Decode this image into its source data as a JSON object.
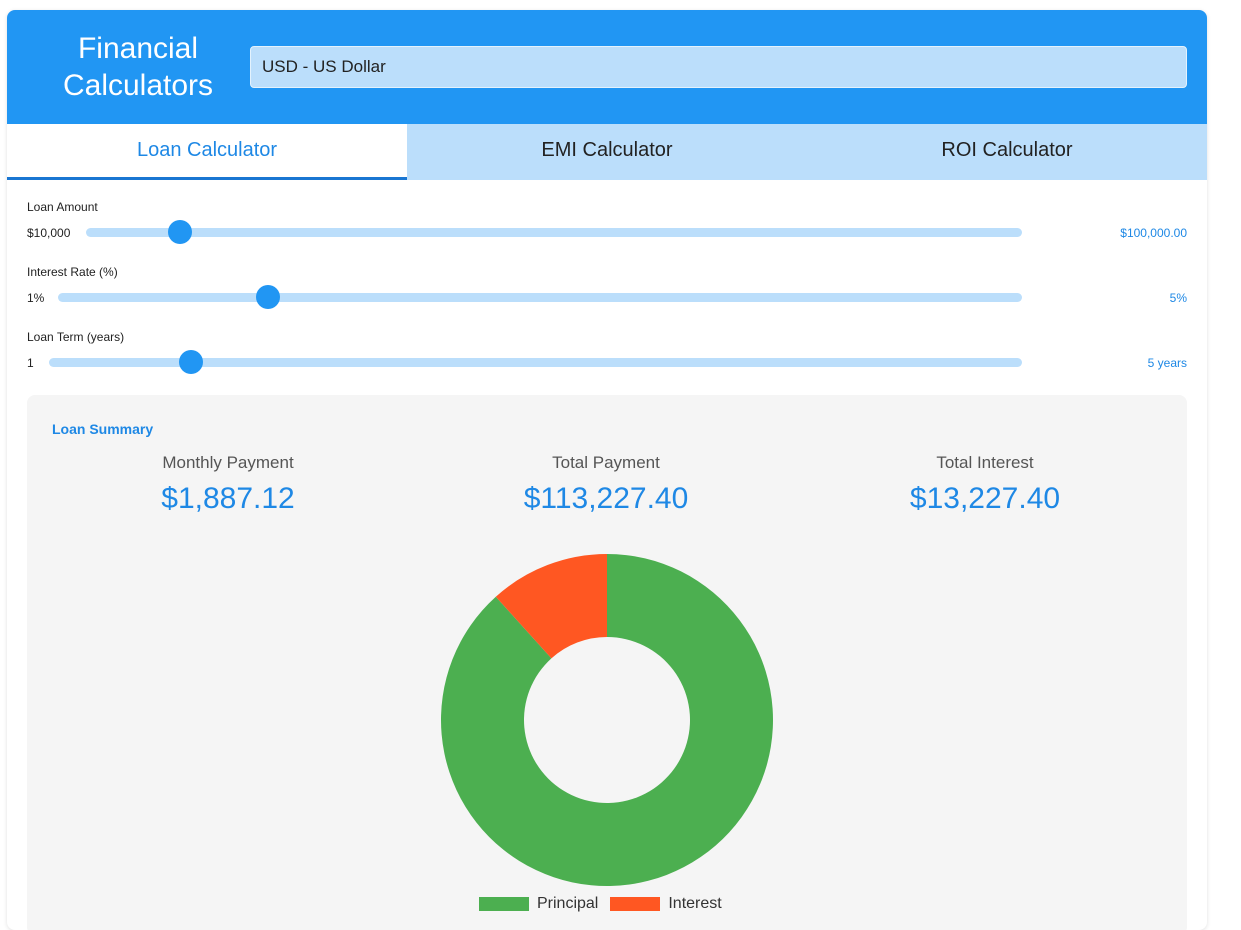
{
  "header": {
    "title": "Financial Calculators",
    "currency": "USD - US Dollar"
  },
  "tabs": [
    {
      "label": "Loan Calculator",
      "active": true
    },
    {
      "label": "EMI Calculator",
      "active": false
    },
    {
      "label": "ROI Calculator",
      "active": false
    }
  ],
  "sliders": {
    "loan_amount": {
      "label": "Loan Amount",
      "min_label": "$10,000",
      "value_label": "$100,000.00",
      "fraction": 0.1
    },
    "interest_rate": {
      "label": "Interest Rate (%)",
      "min_label": "1%",
      "value_label": "5%",
      "fraction": 0.218
    },
    "loan_term": {
      "label": "Loan Term (years)",
      "min_label": "1",
      "value_label": "5 years",
      "fraction": 0.146
    }
  },
  "summary": {
    "title": "Loan Summary",
    "monthly_label": "Monthly Payment",
    "monthly_value": "$1,887.12",
    "total_label": "Total Payment",
    "total_value": "$113,227.40",
    "interest_label": "Total Interest",
    "interest_value": "$13,227.40"
  },
  "chart_data": {
    "type": "pie",
    "categories": [
      "Principal",
      "Interest"
    ],
    "values": [
      100000,
      13227.4
    ],
    "colors": [
      "#4caf50",
      "#ff5722"
    ]
  },
  "colors": {
    "primary": "#2196f3",
    "primary_light": "#bbdefb",
    "accent_text": "#1e88e5"
  }
}
